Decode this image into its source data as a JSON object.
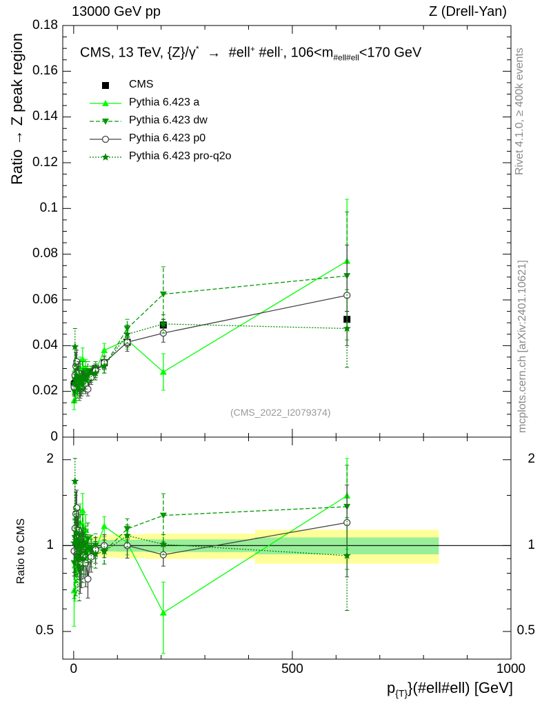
{
  "header": {
    "left": "13000 GeV pp",
    "right": "Z (Drell-Yan)"
  },
  "side_labels": {
    "rivet": "Rivet 4.1.0, ≥ 400k events",
    "mcplots": "mcplots.cern.ch [arXiv:2401.10621]"
  },
  "chart_data": {
    "type": "scatter",
    "title_parts": {
      "prefix": "CMS, 13 TeV, {Z}/γ",
      "gamma_sup": "*",
      "arrow": "→",
      "ell1": "#ell",
      "ell1_sup": "+",
      "ell2": "#ell",
      "ell2_sup": "-",
      "range_pre": "106<m",
      "range_sub": "#ell#ell",
      "range_post": "<170 GeV"
    },
    "ylabel": "Ratio → Z peak region",
    "ratio_ylabel": "Ratio to CMS",
    "xlabel_parts": {
      "p": "p",
      "sub": "{T}",
      "rest": "}(#ell#ell) [GeV]"
    },
    "analysis_id": "(CMS_2022_I2079374)",
    "xlim": [
      -25,
      1000
    ],
    "ylim": [
      0,
      0.18
    ],
    "ratio_ylim": [
      0.4,
      2.4
    ],
    "x_ticks": [
      0,
      500,
      1000
    ],
    "y_ticks": [
      0,
      0.02,
      0.04,
      0.06,
      0.08,
      0.1,
      0.12,
      0.14,
      0.16,
      0.18
    ],
    "y_tick_labels": [
      "0",
      "0.02",
      "0.04",
      "0.06",
      "0.08",
      "0.1",
      "0.12",
      "0.14",
      "0.16",
      "0.18"
    ],
    "ratio_y_ticks": [
      0.5,
      1,
      2
    ],
    "ratio_y_tick_labels": [
      "0.5",
      "1",
      "2"
    ],
    "legend_position": "top-left",
    "x": [
      1,
      3,
      5,
      7,
      9,
      11,
      13,
      15,
      17.5,
      20.5,
      23.5,
      27.5,
      32.5,
      40,
      50,
      70,
      122.5,
      205,
      625
    ],
    "series": [
      {
        "name": "CMS",
        "color": "#000000",
        "marker": "square",
        "line": "none",
        "values": [
          0.023,
          0.0235,
          0.024,
          0.0243,
          0.0245,
          0.0248,
          0.025,
          0.025,
          0.0253,
          0.0256,
          0.026,
          0.0265,
          0.0275,
          0.0285,
          0.03,
          0.0325,
          0.0415,
          0.049,
          0.0515
        ],
        "errors": [
          0.001,
          0.001,
          0.001,
          0.001,
          0.001,
          0.001,
          0.001,
          0.001,
          0.001,
          0.001,
          0.001,
          0.001,
          0.001,
          0.0012,
          0.0012,
          0.0015,
          0.002,
          0.0025,
          0.0035
        ]
      },
      {
        "name": "Pythia 6.423 a",
        "color": "#00ff00",
        "marker": "triangle-up",
        "line": "solid",
        "values": [
          0.016,
          0.02,
          0.03,
          0.023,
          0.028,
          0.026,
          0.024,
          0.03,
          0.022,
          0.034,
          0.027,
          0.03,
          0.025,
          0.028,
          0.029,
          0.038,
          0.0425,
          0.0285,
          0.077
        ],
        "errors": [
          0.004,
          0.005,
          0.006,
          0.005,
          0.005,
          0.005,
          0.005,
          0.005,
          0.004,
          0.005,
          0.004,
          0.004,
          0.004,
          0.003,
          0.003,
          0.003,
          0.004,
          0.008,
          0.027
        ]
      },
      {
        "name": "Pythia 6.423 dw",
        "color": "#009900",
        "marker": "triangle-down",
        "line": "dashed",
        "values": [
          0.02,
          0.025,
          0.022,
          0.027,
          0.024,
          0.025,
          0.023,
          0.027,
          0.024,
          0.028,
          0.026,
          0.027,
          0.029,
          0.027,
          0.03,
          0.031,
          0.0475,
          0.0625,
          0.0705
        ],
        "errors": [
          0.005,
          0.006,
          0.006,
          0.005,
          0.005,
          0.005,
          0.005,
          0.005,
          0.004,
          0.005,
          0.004,
          0.004,
          0.004,
          0.003,
          0.003,
          0.003,
          0.004,
          0.012,
          0.028
        ]
      },
      {
        "name": "Pythia 6.423 p0",
        "color": "#444444",
        "marker": "circle-open",
        "line": "solid",
        "values": [
          0.022,
          0.027,
          0.031,
          0.033,
          0.026,
          0.028,
          0.024,
          0.021,
          0.022,
          0.025,
          0.024,
          0.023,
          0.021,
          0.026,
          0.029,
          0.0325,
          0.0415,
          0.0455,
          0.062
        ],
        "errors": [
          0.004,
          0.005,
          0.006,
          0.005,
          0.005,
          0.005,
          0.005,
          0.004,
          0.004,
          0.004,
          0.004,
          0.004,
          0.003,
          0.003,
          0.003,
          0.003,
          0.004,
          0.004,
          0.022
        ]
      },
      {
        "name": "Pythia 6.423 pro-q2o",
        "color": "#008800",
        "marker": "star",
        "line": "dotted",
        "values": [
          0.0235,
          0.0395,
          0.025,
          0.027,
          0.022,
          0.026,
          0.021,
          0.024,
          0.025,
          0.023,
          0.026,
          0.025,
          0.027,
          0.028,
          0.028,
          0.031,
          0.045,
          0.0495,
          0.0475
        ],
        "errors": [
          0.005,
          0.008,
          0.006,
          0.005,
          0.005,
          0.005,
          0.005,
          0.004,
          0.004,
          0.004,
          0.004,
          0.004,
          0.003,
          0.003,
          0.003,
          0.003,
          0.004,
          0.004,
          0.017
        ]
      }
    ]
  }
}
